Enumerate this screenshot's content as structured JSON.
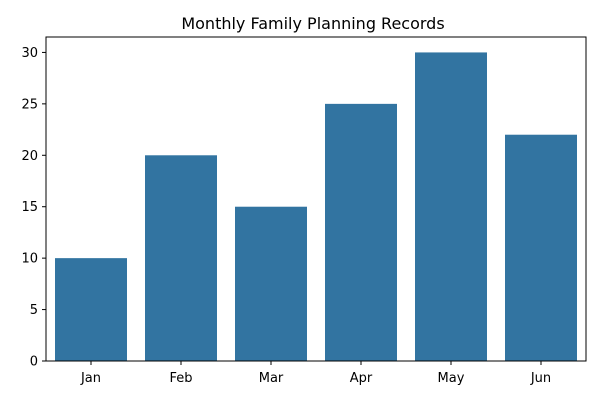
{
  "chart_data": {
    "type": "bar",
    "title": "Monthly Family Planning Records",
    "xlabel": "",
    "ylabel": "",
    "categories": [
      "Jan",
      "Feb",
      "Mar",
      "Apr",
      "May",
      "Jun"
    ],
    "values": [
      10,
      20,
      15,
      25,
      30,
      22
    ],
    "ylim": [
      0,
      31.5
    ],
    "yticks": [
      0,
      5,
      10,
      15,
      20,
      25,
      30
    ],
    "grid": false,
    "legend": "none",
    "bar_color": "#3274a1"
  }
}
